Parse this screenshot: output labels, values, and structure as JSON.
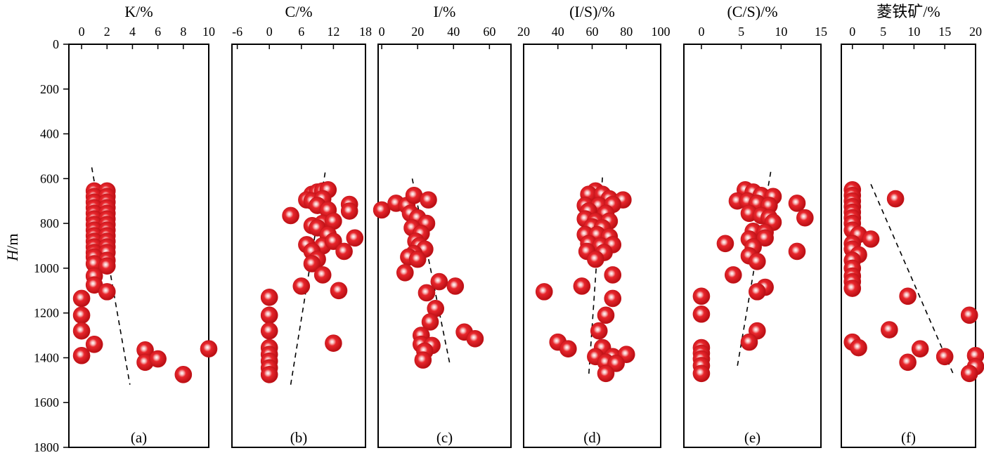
{
  "chart_data": {
    "type": "scatter",
    "y_axis": {
      "label_italic": "H",
      "label_rest": "/m",
      "range": [
        0,
        1800
      ],
      "ticks": [
        0,
        200,
        400,
        600,
        800,
        1000,
        1200,
        1400,
        1600,
        1800
      ],
      "inverted": true
    },
    "marker_color": "#e0151b",
    "panels": [
      {
        "id": "a",
        "title": "K/%",
        "tag": "(a)",
        "xlim": [
          -1,
          10
        ],
        "xticks": [
          0,
          2,
          4,
          6,
          8,
          10
        ],
        "trend": [
          [
            0.8,
            550
          ],
          [
            3.8,
            1520
          ]
        ],
        "points": [
          [
            1,
            655
          ],
          [
            2,
            655
          ],
          [
            1,
            680
          ],
          [
            2,
            680
          ],
          [
            1,
            705
          ],
          [
            2,
            705
          ],
          [
            1,
            730
          ],
          [
            2,
            730
          ],
          [
            1,
            755
          ],
          [
            2,
            755
          ],
          [
            1,
            780
          ],
          [
            2,
            780
          ],
          [
            1,
            805
          ],
          [
            2,
            805
          ],
          [
            1,
            830
          ],
          [
            2,
            830
          ],
          [
            1,
            855
          ],
          [
            2,
            855
          ],
          [
            1,
            880
          ],
          [
            2,
            880
          ],
          [
            1,
            905
          ],
          [
            2,
            905
          ],
          [
            1,
            930
          ],
          [
            2,
            930
          ],
          [
            1,
            950
          ],
          [
            2,
            965
          ],
          [
            1,
            980
          ],
          [
            2,
            990
          ],
          [
            1,
            1035
          ],
          [
            1,
            1075
          ],
          [
            2,
            1105
          ],
          [
            0,
            1135
          ],
          [
            0,
            1210
          ],
          [
            0,
            1280
          ],
          [
            1,
            1340
          ],
          [
            0,
            1390
          ],
          [
            5,
            1365
          ],
          [
            5,
            1420
          ],
          [
            6,
            1405
          ],
          [
            8,
            1475
          ],
          [
            10,
            1360
          ]
        ]
      },
      {
        "id": "b",
        "title": "C/%",
        "tag": "(b)",
        "xlim": [
          -7,
          18
        ],
        "xticks": [
          -6,
          0,
          6,
          12,
          18
        ],
        "trend": [
          [
            4,
            1520
          ],
          [
            10.5,
            565
          ]
        ],
        "points": [
          [
            8,
            670
          ],
          [
            9,
            660
          ],
          [
            10,
            655
          ],
          [
            11,
            650
          ],
          [
            7,
            695
          ],
          [
            8,
            700
          ],
          [
            10,
            690
          ],
          [
            15,
            715
          ],
          [
            15,
            745
          ],
          [
            4,
            765
          ],
          [
            9,
            720
          ],
          [
            11,
            740
          ],
          [
            8,
            810
          ],
          [
            10,
            800
          ],
          [
            12,
            790
          ],
          [
            9,
            820
          ],
          [
            11,
            850
          ],
          [
            16,
            865
          ],
          [
            7,
            895
          ],
          [
            10,
            900
          ],
          [
            12,
            880
          ],
          [
            8,
            925
          ],
          [
            14,
            925
          ],
          [
            9,
            960
          ],
          [
            8,
            980
          ],
          [
            10,
            1030
          ],
          [
            6,
            1080
          ],
          [
            13,
            1100
          ],
          [
            0,
            1130
          ],
          [
            0,
            1210
          ],
          [
            0,
            1280
          ],
          [
            12,
            1335
          ],
          [
            0,
            1355
          ],
          [
            0,
            1385
          ],
          [
            0,
            1415
          ],
          [
            0,
            1445
          ],
          [
            0,
            1475
          ]
        ]
      },
      {
        "id": "c",
        "title": "I/%",
        "tag": "(c)",
        "xlim": [
          -2,
          72
        ],
        "xticks": [
          0,
          20,
          40,
          60
        ],
        "trend": [
          [
            17,
            600
          ],
          [
            38,
            1430
          ]
        ],
        "points": [
          [
            0,
            740
          ],
          [
            8,
            710
          ],
          [
            14,
            720
          ],
          [
            18,
            675
          ],
          [
            26,
            695
          ],
          [
            16,
            755
          ],
          [
            20,
            775
          ],
          [
            25,
            800
          ],
          [
            17,
            820
          ],
          [
            22,
            845
          ],
          [
            19,
            880
          ],
          [
            21,
            900
          ],
          [
            24,
            915
          ],
          [
            18,
            935
          ],
          [
            15,
            950
          ],
          [
            20,
            960
          ],
          [
            13,
            1020
          ],
          [
            32,
            1060
          ],
          [
            41,
            1080
          ],
          [
            25,
            1110
          ],
          [
            30,
            1180
          ],
          [
            27,
            1240
          ],
          [
            22,
            1300
          ],
          [
            46,
            1285
          ],
          [
            52,
            1315
          ],
          [
            22,
            1340
          ],
          [
            28,
            1345
          ],
          [
            24,
            1370
          ],
          [
            23,
            1410
          ]
        ]
      },
      {
        "id": "d",
        "title": "(I/S)/%",
        "tag": "(d)",
        "xlim": [
          20,
          100
        ],
        "xticks": [
          20,
          40,
          60,
          80,
          100
        ],
        "trend": [
          [
            66,
            595
          ],
          [
            58,
            1480
          ]
        ],
        "points": [
          [
            62,
            655
          ],
          [
            58,
            670
          ],
          [
            66,
            670
          ],
          [
            70,
            690
          ],
          [
            78,
            695
          ],
          [
            56,
            720
          ],
          [
            64,
            720
          ],
          [
            72,
            715
          ],
          [
            58,
            745
          ],
          [
            68,
            755
          ],
          [
            56,
            780
          ],
          [
            62,
            790
          ],
          [
            70,
            790
          ],
          [
            60,
            815
          ],
          [
            66,
            820
          ],
          [
            56,
            850
          ],
          [
            63,
            850
          ],
          [
            70,
            860
          ],
          [
            58,
            890
          ],
          [
            65,
            900
          ],
          [
            72,
            895
          ],
          [
            57,
            925
          ],
          [
            67,
            930
          ],
          [
            62,
            960
          ],
          [
            72,
            1030
          ],
          [
            32,
            1105
          ],
          [
            54,
            1080
          ],
          [
            72,
            1135
          ],
          [
            68,
            1210
          ],
          [
            64,
            1280
          ],
          [
            40,
            1330
          ],
          [
            46,
            1360
          ],
          [
            66,
            1355
          ],
          [
            62,
            1395
          ],
          [
            72,
            1395
          ],
          [
            80,
            1385
          ],
          [
            68,
            1420
          ],
          [
            74,
            1425
          ],
          [
            68,
            1470
          ]
        ]
      },
      {
        "id": "e",
        "title": "(C/S)/%",
        "tag": "(e)",
        "xlim": [
          -2.2,
          15
        ],
        "xticks": [
          0,
          5,
          10,
          15
        ],
        "trend": [
          [
            8.7,
            570
          ],
          [
            4.5,
            1440
          ]
        ],
        "points": [
          [
            5.5,
            650
          ],
          [
            6.5,
            660
          ],
          [
            7.5,
            675
          ],
          [
            9,
            680
          ],
          [
            4.5,
            700
          ],
          [
            5.8,
            700
          ],
          [
            7,
            710
          ],
          [
            8.5,
            720
          ],
          [
            12,
            710
          ],
          [
            6,
            755
          ],
          [
            7.5,
            765
          ],
          [
            8.5,
            775
          ],
          [
            13,
            775
          ],
          [
            9,
            795
          ],
          [
            6.5,
            835
          ],
          [
            8,
            840
          ],
          [
            6,
            870
          ],
          [
            8,
            865
          ],
          [
            3,
            890
          ],
          [
            6.5,
            905
          ],
          [
            12,
            925
          ],
          [
            6,
            945
          ],
          [
            7,
            970
          ],
          [
            4,
            1030
          ],
          [
            8,
            1085
          ],
          [
            7,
            1105
          ],
          [
            0,
            1125
          ],
          [
            0,
            1205
          ],
          [
            7,
            1280
          ],
          [
            6,
            1330
          ],
          [
            0,
            1355
          ],
          [
            0,
            1380
          ],
          [
            0,
            1405
          ],
          [
            0,
            1435
          ],
          [
            0,
            1470
          ]
        ]
      },
      {
        "id": "f",
        "title": "菱铁矿/%",
        "tag": "(f)",
        "xlim": [
          -1.8,
          20
        ],
        "xticks": [
          0,
          5,
          10,
          15,
          20
        ],
        "trend": [
          [
            3,
            625
          ],
          [
            16.5,
            1480
          ]
        ],
        "points": [
          [
            0,
            650
          ],
          [
            0,
            675
          ],
          [
            7,
            690
          ],
          [
            0,
            700
          ],
          [
            0,
            725
          ],
          [
            0,
            750
          ],
          [
            0,
            775
          ],
          [
            0,
            800
          ],
          [
            0,
            830
          ],
          [
            1,
            850
          ],
          [
            3,
            870
          ],
          [
            0,
            890
          ],
          [
            0,
            915
          ],
          [
            1,
            940
          ],
          [
            0,
            965
          ],
          [
            0,
            1000
          ],
          [
            0,
            1035
          ],
          [
            0,
            1060
          ],
          [
            0,
            1090
          ],
          [
            9,
            1125
          ],
          [
            19,
            1210
          ],
          [
            6,
            1275
          ],
          [
            0,
            1330
          ],
          [
            1,
            1355
          ],
          [
            11,
            1360
          ],
          [
            15,
            1395
          ],
          [
            20,
            1390
          ],
          [
            9,
            1420
          ],
          [
            20,
            1440
          ],
          [
            19,
            1470
          ]
        ]
      }
    ]
  }
}
